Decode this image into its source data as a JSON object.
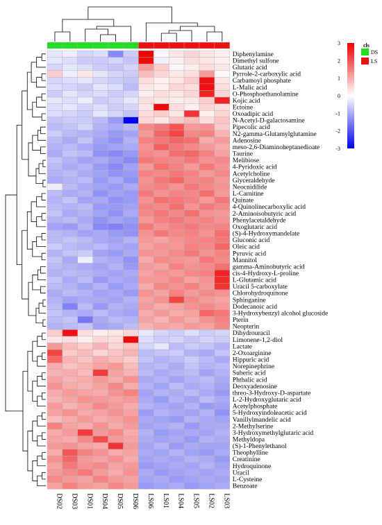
{
  "chart_data": {
    "type": "heatmap",
    "columns": [
      "DS02",
      "DS03",
      "DS01",
      "DS04",
      "DS05",
      "DS06",
      "LS06",
      "LS01",
      "LS04",
      "LS05",
      "LS02",
      "LS03"
    ],
    "groups": [
      "DS",
      "DS",
      "DS",
      "DS",
      "DS",
      "DS",
      "LS",
      "LS",
      "LS",
      "LS",
      "LS",
      "LS"
    ],
    "group_colors": {
      "DS": "#22dd22",
      "LS": "#ee1111"
    },
    "annotation_label": "cls",
    "legend": {
      "entries": [
        {
          "name": "DS",
          "color": "#22dd22"
        },
        {
          "name": "LS",
          "color": "#ee1111"
        }
      ],
      "placement": "top-right"
    },
    "color_scale": {
      "min": -3,
      "max": 3,
      "low": "#0000ee",
      "mid": "#ffffff",
      "high": "#ee0000",
      "ticks": [
        "3",
        "2",
        "1",
        "0",
        "-1",
        "-2",
        "-3"
      ]
    },
    "rows": [
      "Diphenylamine",
      "Dimethyl sulfone",
      "Glutaric acid",
      "Pyrrole-2-carboxylic acid",
      "Carbamoyl phosphate",
      "L-Malic acid",
      "O-Phosphoethanolamine",
      "Kojic acid",
      "Ectoine",
      "Oxoadipic acid",
      "N-Acetyl-D-galactosamine",
      "Pipecolic acid",
      "N2-gamma-Glutamylglutamine",
      "Adenosine",
      "meso-2,6-Diaminoheptanedioate",
      "Taurine",
      "Melibiose",
      "4-Pyridoxic acid",
      "Acetylcholine",
      "Glyceraldehyde",
      "Neocnidilide",
      "L-Carnitine",
      "Quinate",
      "4-Quinolinecarboxylic acid",
      "2-Aminoisobutyric acid",
      "Phenylacetaldehyde",
      "Oxoglutaric acid",
      "(S)-4-Hydroxymandelate",
      "Gluconic acid",
      "Oleic acid",
      "Pyruvic acid",
      "Mannitol",
      "gamma-Aminobutyric acid",
      "cis-4-Hydroxy-L-proline",
      "L-Glutamic acid",
      "Uracil 5-carboxylate",
      "Chlorohydroquinone",
      "Sphinganine",
      "Dodecanoic acid",
      "3-Hydroxybenzyl alcohol glucoside",
      "Pterin",
      "Neopterin",
      "Dihydrouracil",
      "Limonene-1,2-diol",
      "Lactate",
      "2-Oxoarginine",
      "Hippuric acid",
      "Norepinephrine",
      "Suberic acid",
      "Phthalic acid",
      "Deoxyadenosine",
      "threo-3-Hydroxy-D-aspartate",
      "L-2-Hydroxyglutaric acid",
      "Acetylphosphate",
      "5-Hydroxyindoleacetic acid",
      "Vanillylmandelic acid",
      "2-Methylserine",
      "3-Hydroxymethylglutaric acid",
      "Methyldopa",
      "(S)-1-Phenylethanol",
      "Theophylline",
      "Creatinine",
      "Hydroquinone",
      "Uracil",
      "L-Cysteine",
      "Benzoate"
    ],
    "values": [
      [
        -0.3,
        -0.2,
        -0.5,
        -0.4,
        -1.4,
        -0.6,
        3.0,
        0.1,
        0.3,
        0.5,
        0.3,
        0.2
      ],
      [
        -0.3,
        -0.4,
        -0.6,
        -0.6,
        -0.5,
        -0.7,
        2.9,
        -0.2,
        0.2,
        0.4,
        0.3,
        0.2
      ],
      [
        -0.5,
        -0.3,
        -0.4,
        -0.6,
        -0.7,
        -0.5,
        1.2,
        0.6,
        -0.1,
        0.2,
        0.4,
        0.3
      ],
      [
        0.6,
        -0.2,
        0.3,
        -0.3,
        -0.5,
        -0.6,
        0.8,
        0.5,
        0.3,
        0.4,
        1.2,
        0.1
      ],
      [
        -0.5,
        -0.4,
        -0.3,
        -0.5,
        -0.6,
        -0.7,
        0.4,
        0.2,
        0.3,
        0.6,
        2.8,
        0.3
      ],
      [
        -0.4,
        -0.5,
        -0.6,
        -0.3,
        -0.4,
        -0.8,
        0.3,
        0.2,
        0.5,
        0.4,
        2.8,
        0.4
      ],
      [
        -0.6,
        -0.3,
        -0.5,
        -0.4,
        -0.6,
        -0.5,
        0.2,
        0.4,
        0.3,
        0.5,
        2.6,
        0.5
      ],
      [
        -0.3,
        -0.4,
        -0.2,
        -0.6,
        -0.5,
        -0.3,
        0.4,
        0.3,
        0.2,
        0.3,
        0.6,
        2.6
      ],
      [
        -0.4,
        -0.3,
        -0.5,
        -0.4,
        -0.6,
        -0.5,
        0.3,
        2.9,
        0.4,
        0.2,
        0.5,
        0.4
      ],
      [
        -0.4,
        -0.5,
        -0.6,
        -0.3,
        -0.5,
        -0.7,
        0.4,
        0.6,
        0.3,
        2.4,
        0.2,
        0.5
      ],
      [
        -0.7,
        -0.6,
        -0.6,
        -0.8,
        -1.2,
        -3.0,
        0.5,
        0.3,
        0.6,
        0.8,
        0.4,
        0.7
      ],
      [
        -0.8,
        -0.7,
        -0.5,
        -0.9,
        -1.0,
        -0.8,
        1.4,
        1.6,
        2.0,
        1.2,
        1.3,
        0.6
      ],
      [
        -0.6,
        -0.8,
        -0.9,
        -1.0,
        -1.2,
        -1.1,
        1.2,
        1.8,
        2.2,
        1.4,
        1.5,
        0.9
      ],
      [
        -0.8,
        -1.0,
        -0.7,
        -1.1,
        -1.3,
        -0.9,
        1.5,
        1.6,
        1.8,
        1.7,
        1.0,
        1.2
      ],
      [
        -0.9,
        -0.8,
        -1.0,
        -1.2,
        -1.1,
        -1.0,
        1.3,
        1.9,
        1.6,
        1.4,
        1.2,
        1.0
      ],
      [
        -1.0,
        -0.7,
        -0.8,
        -1.3,
        -1.4,
        -1.2,
        1.4,
        1.3,
        1.7,
        1.8,
        1.5,
        1.1
      ],
      [
        -0.7,
        -0.9,
        -1.1,
        -1.0,
        -1.2,
        -1.4,
        1.6,
        1.5,
        1.4,
        1.6,
        1.3,
        1.4
      ],
      [
        -0.8,
        -1.0,
        -0.9,
        -1.2,
        -1.4,
        -1.1,
        1.2,
        1.7,
        1.5,
        1.2,
        1.6,
        1.3
      ],
      [
        -0.9,
        -0.8,
        -1.0,
        -1.1,
        -1.3,
        -1.2,
        1.5,
        1.4,
        1.6,
        1.5,
        1.2,
        1.4
      ],
      [
        -1.0,
        -0.9,
        -0.8,
        -1.2,
        -1.0,
        -1.3,
        1.3,
        1.6,
        1.8,
        1.4,
        1.5,
        1.2
      ],
      [
        -0.2,
        -0.8,
        -1.0,
        -1.1,
        -1.2,
        -1.0,
        1.4,
        1.5,
        1.3,
        1.6,
        1.4,
        1.3
      ],
      [
        -0.8,
        -1.0,
        -0.9,
        -1.3,
        -1.1,
        -1.2,
        1.6,
        1.3,
        1.5,
        1.4,
        1.7,
        1.2
      ],
      [
        -0.9,
        -0.7,
        -1.1,
        -1.0,
        -1.3,
        -1.2,
        1.3,
        1.7,
        1.6,
        1.5,
        1.2,
        1.6
      ],
      [
        -0.8,
        -0.9,
        -0.8,
        -1.2,
        -1.2,
        -1.1,
        1.5,
        1.4,
        1.7,
        1.3,
        1.6,
        1.4
      ],
      [
        -0.7,
        -1.0,
        -0.9,
        -1.1,
        -1.3,
        -1.0,
        1.4,
        1.6,
        1.4,
        1.7,
        1.3,
        1.2
      ],
      [
        -0.9,
        -0.8,
        -1.0,
        -1.3,
        -1.1,
        -1.2,
        1.2,
        1.5,
        1.6,
        1.4,
        1.5,
        1.3
      ],
      [
        -1.1,
        -1.2,
        -0.9,
        -1.4,
        -1.5,
        -1.3,
        1.6,
        1.3,
        1.5,
        1.6,
        1.4,
        1.5
      ],
      [
        -0.8,
        -0.9,
        -1.1,
        -1.0,
        -1.2,
        -1.3,
        1.3,
        1.6,
        1.4,
        1.5,
        1.3,
        1.7
      ],
      [
        -0.8,
        -0.7,
        -0.8,
        -1.0,
        -1.1,
        -0.9,
        1.2,
        1.1,
        1.3,
        1.4,
        1.5,
        1.6
      ],
      [
        -0.6,
        -0.8,
        -0.9,
        -0.8,
        -1.0,
        -1.1,
        1.1,
        1.3,
        1.2,
        1.5,
        1.4,
        1.8
      ],
      [
        -0.9,
        -0.7,
        -0.6,
        -1.1,
        -1.2,
        -1.0,
        1.3,
        1.2,
        1.4,
        1.6,
        1.3,
        1.5
      ],
      [
        -0.7,
        -1.0,
        -0.2,
        -0.9,
        -1.0,
        -1.3,
        1.0,
        1.4,
        1.3,
        1.2,
        1.6,
        1.4
      ],
      [
        -0.8,
        -0.9,
        -1.0,
        -1.1,
        -0.9,
        -1.2,
        1.2,
        1.1,
        1.5,
        1.3,
        1.4,
        1.7
      ],
      [
        -0.9,
        -0.8,
        -0.9,
        -1.0,
        -1.1,
        -1.0,
        1.1,
        1.3,
        1.2,
        1.4,
        1.5,
        2.6
      ],
      [
        -0.7,
        -1.0,
        -0.8,
        -1.2,
        -1.0,
        -1.1,
        1.2,
        1.2,
        1.4,
        1.1,
        1.3,
        2.5
      ],
      [
        -0.8,
        -0.9,
        -1.1,
        -0.9,
        -1.2,
        -1.0,
        1.0,
        1.4,
        1.3,
        1.5,
        1.2,
        2.4
      ],
      [
        -1.0,
        -0.8,
        -0.9,
        -1.1,
        -1.0,
        -1.2,
        1.3,
        1.1,
        1.5,
        1.2,
        1.4,
        1.3
      ],
      [
        -0.9,
        -1.1,
        -1.0,
        -1.0,
        -1.1,
        -0.9,
        1.1,
        1.3,
        2.2,
        1.4,
        1.2,
        1.1
      ],
      [
        -0.8,
        -1.5,
        -0.8,
        -1.2,
        -0.9,
        -1.0,
        1.2,
        1.0,
        1.1,
        1.3,
        1.4,
        1.2
      ],
      [
        -0.7,
        -0.9,
        -1.0,
        -0.8,
        -1.0,
        -1.1,
        1.0,
        1.2,
        1.0,
        1.1,
        1.8,
        1.6
      ],
      [
        -0.8,
        -0.7,
        -1.6,
        -1.0,
        -0.8,
        -0.9,
        1.1,
        0.9,
        1.2,
        1.0,
        1.3,
        1.5
      ],
      [
        -0.9,
        -0.8,
        -0.7,
        -1.1,
        -1.0,
        -0.8,
        0.9,
        1.1,
        1.0,
        1.2,
        1.1,
        1.4
      ],
      [
        0.6,
        2.8,
        0.4,
        0.2,
        0.3,
        0.5,
        -0.3,
        -0.5,
        -0.6,
        -0.4,
        -0.6,
        -0.5
      ],
      [
        0.3,
        0.4,
        0.2,
        0.5,
        0.4,
        2.9,
        -0.4,
        -0.6,
        -0.5,
        -0.7,
        -0.5,
        -0.6
      ],
      [
        1.2,
        0.8,
        0.6,
        0.9,
        0.5,
        0.7,
        -0.5,
        -0.3,
        -0.8,
        -0.6,
        -0.7,
        -0.9
      ],
      [
        2.2,
        0.6,
        0.8,
        0.5,
        0.7,
        0.9,
        -0.8,
        -0.7,
        -0.6,
        -0.9,
        -1.0,
        -0.7
      ],
      [
        1.8,
        0.9,
        0.7,
        1.0,
        0.8,
        0.6,
        -0.7,
        -0.9,
        -0.8,
        -0.6,
        -0.8,
        -1.0
      ],
      [
        1.0,
        0.7,
        0.9,
        1.1,
        1.2,
        0.8,
        -0.9,
        -0.8,
        -1.0,
        -0.7,
        -0.9,
        -0.8
      ],
      [
        0.9,
        1.0,
        0.8,
        2.3,
        1.1,
        0.9,
        -0.8,
        -1.0,
        -0.9,
        -0.8,
        -1.1,
        -0.9
      ],
      [
        1.1,
        0.9,
        1.0,
        1.2,
        1.0,
        1.3,
        -1.0,
        -0.9,
        -1.1,
        -0.9,
        -0.8,
        -1.0
      ],
      [
        1.3,
        1.0,
        0.9,
        1.1,
        1.4,
        1.0,
        -0.9,
        -1.1,
        -0.8,
        -1.0,
        -0.9,
        -1.1
      ],
      [
        1.0,
        1.2,
        1.1,
        1.0,
        1.3,
        1.5,
        -1.1,
        -0.9,
        -1.0,
        -0.8,
        -1.0,
        -1.2
      ],
      [
        0.9,
        1.1,
        1.3,
        1.2,
        1.1,
        1.2,
        -1.0,
        -1.2,
        -0.9,
        -1.1,
        -0.8,
        -1.0
      ],
      [
        1.2,
        0.9,
        1.1,
        1.4,
        1.2,
        1.0,
        -0.9,
        -1.0,
        -1.1,
        -0.9,
        -1.2,
        -1.1
      ],
      [
        1.1,
        1.3,
        1.0,
        1.1,
        1.3,
        1.1,
        -1.2,
        -0.9,
        -1.0,
        -1.1,
        -0.9,
        -1.3
      ],
      [
        0.8,
        1.0,
        1.2,
        1.0,
        1.1,
        1.3,
        -1.0,
        -1.1,
        -1.2,
        -0.9,
        -1.0,
        -1.1
      ],
      [
        1.5,
        1.1,
        1.0,
        1.3,
        1.0,
        1.2,
        -1.1,
        -1.0,
        -0.9,
        -1.2,
        -1.0,
        -1.0
      ],
      [
        1.0,
        1.2,
        2.3,
        1.2,
        1.4,
        1.0,
        -0.9,
        -1.2,
        -1.1,
        -1.0,
        -1.1,
        -0.9
      ],
      [
        1.1,
        1.0,
        1.4,
        2.1,
        1.2,
        1.1,
        -1.0,
        -1.1,
        -1.0,
        -1.2,
        -0.9,
        -1.0
      ],
      [
        1.2,
        1.3,
        1.1,
        1.0,
        2.4,
        1.2,
        -1.1,
        -0.9,
        -1.2,
        -1.0,
        -1.1,
        -1.1
      ],
      [
        1.0,
        2.0,
        1.5,
        1.3,
        1.0,
        1.1,
        -1.0,
        -1.1,
        -0.9,
        -1.1,
        -1.2,
        -1.0
      ],
      [
        1.3,
        1.8,
        1.2,
        1.1,
        1.3,
        1.0,
        -1.1,
        -1.0,
        -1.1,
        -0.9,
        -1.0,
        -1.2
      ],
      [
        1.1,
        1.6,
        1.3,
        1.4,
        1.1,
        1.2,
        -1.2,
        -1.1,
        -1.0,
        -1.1,
        -0.9,
        -1.1
      ],
      [
        1.2,
        1.4,
        1.6,
        1.2,
        1.0,
        1.3,
        -1.0,
        -1.2,
        -1.1,
        -1.0,
        -1.1,
        -1.0
      ],
      [
        1.4,
        1.2,
        1.1,
        1.5,
        1.2,
        1.1,
        -1.1,
        -1.0,
        -1.2,
        -1.1,
        -1.0,
        -1.1
      ],
      [
        1.1,
        1.5,
        1.2,
        1.1,
        1.4,
        1.2,
        -1.2,
        -1.1,
        -1.0,
        -1.2,
        -1.1,
        -1.0
      ]
    ]
  }
}
